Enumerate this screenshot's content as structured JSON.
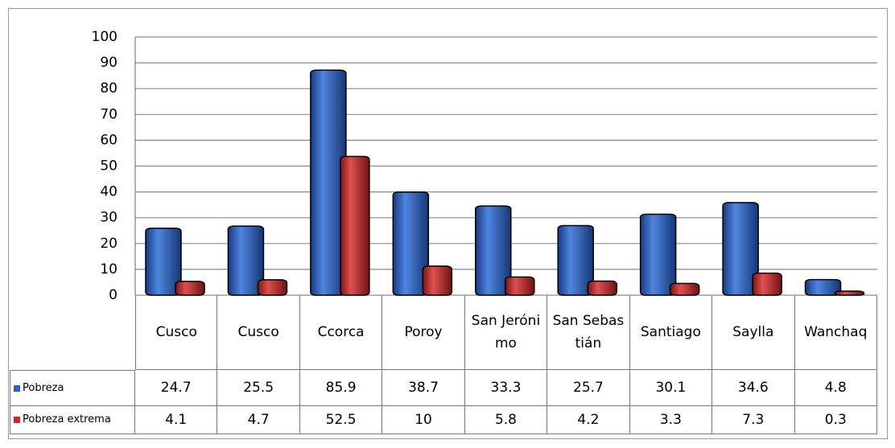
{
  "chart_data": {
    "type": "bar",
    "categories": [
      "Cusco",
      "Cusco",
      "Ccorca",
      "Poroy",
      "San Jerónimo",
      "San Sebastián",
      "Santiago",
      "Saylla",
      "Wanchaq"
    ],
    "series": [
      {
        "name": "Pobreza",
        "color": "#2e62c0",
        "values": [
          24.7,
          25.5,
          85.9,
          38.7,
          33.3,
          25.7,
          30.1,
          34.6,
          4.8
        ]
      },
      {
        "name": "Pobreza extrema",
        "color": "#c62a2a",
        "values": [
          4.1,
          4.7,
          52.5,
          10,
          5.8,
          4.2,
          3.3,
          7.3,
          0.3
        ]
      }
    ],
    "ylim": [
      0,
      100
    ],
    "yticks": [
      0,
      10,
      20,
      30,
      40,
      50,
      60,
      70,
      80,
      90,
      100
    ],
    "grid": true
  }
}
